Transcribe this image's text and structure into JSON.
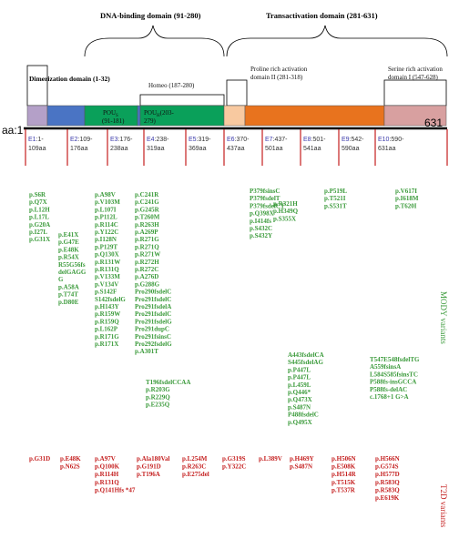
{
  "domains": {
    "dna_binding": "DNA-binding  domain  (91-280)",
    "transactivation": "Transactivation  domain  (281-631)",
    "dimerization": "Dimerization domain (1-32)",
    "homeo": "Homeo (187-280)",
    "proline_line1": "Proline rich activation",
    "proline_line2": "domain II (281-318)",
    "serine_line1": "Serine rich activation",
    "serine_line2": "domain I (547-628)"
  },
  "protein_segments": {
    "pous_line1": "POU",
    "pous_sub": "S",
    "pous_line2": "(91-181)",
    "pouh_line1": "POU",
    "pouh_sub": "H",
    "pouh_suffix": "(203-",
    "pouh_line2": "279)"
  },
  "axis": {
    "start": "aa:1",
    "end": "631"
  },
  "exons": [
    {
      "id": "E1",
      "range1": ":1-",
      "range2": "109aa"
    },
    {
      "id": "E2",
      "range1": ":109-",
      "range2": "176aa"
    },
    {
      "id": "E3",
      "range1": ":176-",
      "range2": "238aa"
    },
    {
      "id": "E4",
      "range1": ":238-",
      "range2": "319aa"
    },
    {
      "id": "E5",
      "range1": ":319-",
      "range2": "369aa"
    },
    {
      "id": "E6",
      "range1": ":370-",
      "range2": "437aa"
    },
    {
      "id": "E7",
      "range1": ":437-",
      "range2": "501aa"
    },
    {
      "id": "E8",
      "range1": ":501-",
      "range2": "541aa"
    },
    {
      "id": "E9",
      "range1": ":542-",
      "range2": "590aa"
    },
    {
      "id": "E10",
      "range1": ":590-",
      "range2": "631aa"
    }
  ],
  "mody_columns": [
    {
      "items": [
        "p.S6R",
        "p.Q7X",
        "p.L12H",
        "p.L17L",
        "p.G20A",
        "p.I27L",
        "p.G31X"
      ]
    },
    {
      "items": [
        "p.E41X",
        "p.G47E",
        "p.E48K",
        "p.R54X",
        "R55G56fs",
        "delGAGG",
        "G",
        "p.A58A",
        "p.T74T",
        "p.D80E"
      ]
    },
    {
      "items": [
        "p.A98V",
        "p.V103M",
        "p.L107I",
        "p.P112L",
        "p.R114C",
        "p.Y122C",
        "p.I128N",
        "p.P129T",
        "p.Q130X",
        "p.R131W",
        "p.R131Q",
        "p.V133M",
        "p.V134V",
        "p.S142F",
        "S142fsdelG",
        "p.H143Y",
        "p.R159W",
        "p.R159Q",
        "p.L162P",
        "p.R171G",
        "p.R171X"
      ]
    },
    {
      "items": [
        "p.C241R",
        "p.C241G",
        "p.G245R",
        "p.T260M",
        "p.R263H",
        "p.A269P",
        "p.R271G",
        "p.R271Q",
        "p.R271W",
        "p.R272H",
        "p.R272C",
        "p.A276D",
        "p.G288G",
        "Pro290fsdelC",
        "Pro291fsdelC",
        "Pro291fsdelA",
        "Pro291fsdelC",
        "Pro291fsdelG",
        "Pro291dupC",
        "Pro291fsinsC",
        "Pro292fsdelG",
        "p.A301T"
      ]
    },
    {
      "items": [
        "p.R321H",
        "p.H349Q",
        "p.S355X"
      ]
    },
    {
      "items": [
        "P379fsinsC",
        "P379fsdelT",
        "P379fsdelCT",
        "p.Q398X",
        "p.I414fs",
        "p.S432C",
        "p.S432Y"
      ]
    },
    {
      "items": [
        "A443fsdelCA",
        "S445fsdelAG",
        "p.P447L",
        "p.P447L",
        "p.L459L",
        "p.Q446*",
        "p.Q473X",
        "p.S487N",
        "P488fsdelC",
        "p.Q495X"
      ]
    },
    {
      "items": [
        "p.P519L",
        "p.T521I",
        "p.S531T"
      ]
    },
    {
      "items": [
        "T547E548fsdelTG",
        "A559fsinsA",
        "L584S585fsinsTC",
        "P588fs-insGCCA",
        "P588fs-delAC",
        "c.1768+1 G>A"
      ]
    },
    {
      "items": [
        "p.V617I",
        "p.I618M",
        "p.T620I"
      ]
    },
    {
      "items": [
        "T196fsdelCCAA",
        "p.R203G",
        "p.R229Q",
        "p.E235Q"
      ]
    }
  ],
  "t2d_columns": [
    {
      "items": [
        "p.G31D"
      ]
    },
    {
      "items": [
        "p.E48K",
        "p.N62S"
      ]
    },
    {
      "items": [
        "p.A97V",
        "p.Q100K",
        "p.R114H",
        "p.R131Q",
        "p.Q141Hfs *47"
      ]
    },
    {
      "items": [
        "p.Ala180Val",
        "p.G191D",
        "p.T196A"
      ]
    },
    {
      "items": [
        "p.L254M",
        "p.R263C",
        "p.E275del"
      ]
    },
    {
      "items": [
        "p.G319S",
        "p.Y322C"
      ]
    },
    {
      "items": [
        "p.L389V"
      ]
    },
    {
      "items": [
        "p.H469Y",
        "p.S487N"
      ]
    },
    {
      "items": [
        "p.H506N",
        "p.E508K",
        "p.H514R",
        "p.T515K",
        "p.T537R"
      ]
    },
    {
      "items": [
        "p.H566N",
        "p.G574S",
        "p.H577D",
        "p.R583Q",
        "p.R583Q",
        "p.E619K"
      ]
    }
  ],
  "labels": {
    "mody": "MODY variants",
    "t2d": "T2D variants"
  },
  "colors": {
    "dimerization": "#b4a0c8",
    "blue_seg": "#4a74c4",
    "pou": "#0aa05a",
    "peach": "#f8c9a0",
    "orange": "#e8731e",
    "pink": "#d8a0a0",
    "mody": "#3a9a3a",
    "t2d": "#c41e1e"
  }
}
